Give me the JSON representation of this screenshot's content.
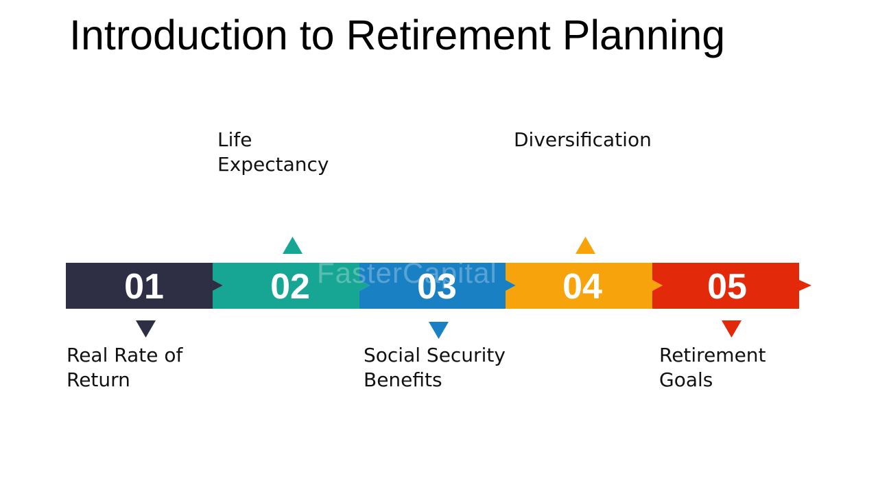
{
  "title": "Introduction to Retirement Planning",
  "watermark": "FasterCapital",
  "steps": [
    {
      "number": "01",
      "label_lines": [
        "Real Rate of",
        "Return"
      ],
      "label_position": "below",
      "color": "#2e2e45"
    },
    {
      "number": "02",
      "label_lines": [
        "Life",
        "Expectancy"
      ],
      "label_position": "above",
      "color": "#17a594"
    },
    {
      "number": "03",
      "label_lines": [
        "Social Security",
        "Benefits"
      ],
      "label_position": "below",
      "color": "#1a80c4"
    },
    {
      "number": "04",
      "label_lines": [
        "Diversification"
      ],
      "label_position": "above",
      "color": "#f7a30b"
    },
    {
      "number": "05",
      "label_lines": [
        "Retirement",
        "Goals"
      ],
      "label_position": "below",
      "color": "#e22a0a"
    }
  ]
}
